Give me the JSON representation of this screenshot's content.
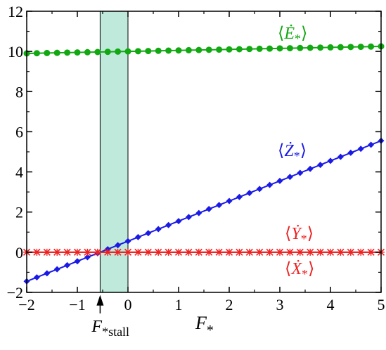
{
  "chart_data": {
    "type": "line",
    "x_axis": {
      "label": "F*",
      "label_base": "F",
      "label_sub": "*",
      "lim": [
        -2,
        5
      ],
      "ticks": [
        -2,
        -1,
        0,
        1,
        2,
        3,
        4,
        5
      ],
      "tick_labels": [
        "−2",
        "−1",
        "0",
        "1",
        "2",
        "3",
        "4",
        "5"
      ]
    },
    "y_axis": {
      "label": "",
      "lim": [
        -2,
        12
      ],
      "ticks": [
        -2,
        0,
        2,
        4,
        6,
        8,
        10,
        12
      ],
      "tick_labels": [
        "−2",
        "0",
        "2",
        "4",
        "6",
        "8",
        "10",
        "12"
      ]
    },
    "grid": false,
    "shaded_region": {
      "x_range": [
        -0.55,
        0
      ],
      "color": "#bfeadb"
    },
    "stall_marker": {
      "x": -0.55,
      "label_base": "F",
      "label_sub": "*stall"
    },
    "series": [
      {
        "name": "⟨Ė*⟩",
        "color": "#12a812",
        "marker": "circle",
        "x_start": -2,
        "x_end": 5,
        "x_step": 0.2,
        "y_start": 9.9,
        "y_end": 10.25,
        "label": {
          "open": "⟨",
          "base": "Ė",
          "sub": "*",
          "close": "⟩"
        }
      },
      {
        "name": "⟨Ż*⟩",
        "color": "#1a1ae6",
        "marker": "diamond",
        "x_start": -2,
        "x_end": 5,
        "x_step": 0.2,
        "y_start": -1.45,
        "y_end": 5.55,
        "label": {
          "open": "⟨",
          "base": "Ż",
          "sub": "*",
          "close": "⟩"
        }
      },
      {
        "name": "⟨Ẏ*⟩",
        "color": "#ee2222",
        "marker": "x",
        "x_start": -2,
        "x_end": 5,
        "x_step": 0.2,
        "y_start": 0,
        "y_end": 0,
        "label": {
          "open": "⟨",
          "base": "Ẏ",
          "sub": "*",
          "close": "⟩"
        }
      },
      {
        "name": "⟨Ẋ*⟩",
        "color": "#ee2222",
        "marker": "star",
        "x_start": -2,
        "x_end": 5,
        "x_step": 0.2,
        "y_start": 0,
        "y_end": 0,
        "label": {
          "open": "⟨",
          "base": "Ẋ",
          "sub": "*",
          "close": "⟩"
        }
      }
    ]
  }
}
